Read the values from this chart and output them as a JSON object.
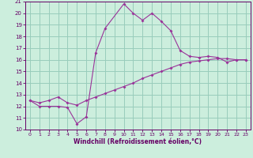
{
  "xlabel": "Windchill (Refroidissement éolien,°C)",
  "line1_x": [
    0,
    1,
    2,
    3,
    4,
    5,
    6,
    7,
    8,
    9,
    10,
    11,
    12,
    13,
    14,
    15,
    16,
    17,
    18,
    19,
    20,
    21,
    22,
    23
  ],
  "line1_y": [
    12.5,
    12.0,
    12.0,
    12.0,
    11.9,
    10.5,
    11.1,
    16.6,
    18.7,
    null,
    20.8,
    20.0,
    19.4,
    20.0,
    19.3,
    18.5,
    16.8,
    16.3,
    16.2,
    16.3,
    16.2,
    15.8,
    16.0,
    16.0
  ],
  "line2_x": [
    0,
    1,
    2,
    3,
    4,
    5,
    6,
    7,
    8,
    9,
    10,
    11,
    12,
    13,
    14,
    15,
    16,
    17,
    18,
    19,
    20,
    21,
    22,
    23
  ],
  "line2_y": [
    12.5,
    12.3,
    12.5,
    12.8,
    12.3,
    12.1,
    12.5,
    12.8,
    13.1,
    13.4,
    13.7,
    14.0,
    14.4,
    14.7,
    15.0,
    15.3,
    15.6,
    15.8,
    15.9,
    16.0,
    16.1,
    16.1,
    16.0,
    16.0
  ],
  "line_color": "#993399",
  "bg_color": "#cceedd",
  "grid_color": "#99ccbb",
  "xlim": [
    -0.5,
    23.5
  ],
  "ylim": [
    10,
    21
  ],
  "yticks": [
    10,
    11,
    12,
    13,
    14,
    15,
    16,
    17,
    18,
    19,
    20,
    21
  ],
  "xticks": [
    0,
    1,
    2,
    3,
    4,
    5,
    6,
    7,
    8,
    9,
    10,
    11,
    12,
    13,
    14,
    15,
    16,
    17,
    18,
    19,
    20,
    21,
    22,
    23
  ]
}
